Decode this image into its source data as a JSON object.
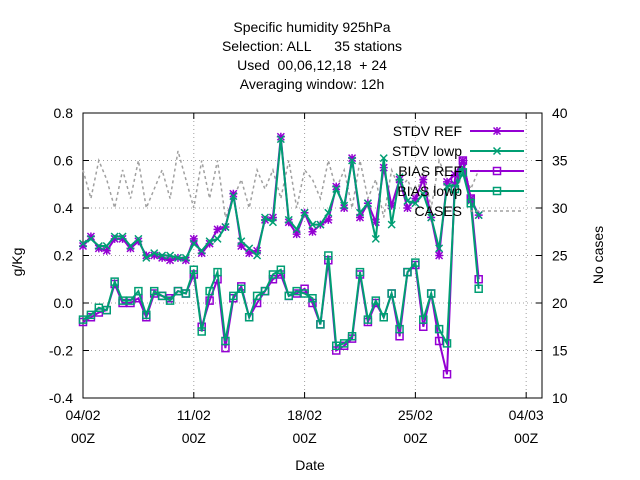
{
  "chart_data": {
    "type": "line",
    "title_lines": [
      "Specific humidity 925hPa",
      "Selection: ALL      35 stations",
      "Used  00,06,12,18  + 24",
      "Averaging window: 12h"
    ],
    "xlabel": "Date",
    "ylabel": "g/Kg",
    "y2label": "No cases",
    "xlim": [
      0,
      29
    ],
    "ylim": [
      -0.4,
      0.8
    ],
    "y2lim": [
      10,
      40
    ],
    "grid": true,
    "legend_position": "top-right",
    "x_ticks": [
      {
        "x": 0,
        "line1": "04/02",
        "line2": "00Z"
      },
      {
        "x": 7,
        "line1": "11/02",
        "line2": "00Z"
      },
      {
        "x": 14,
        "line1": "18/02",
        "line2": "00Z"
      },
      {
        "x": 21,
        "line1": "25/02",
        "line2": "00Z"
      },
      {
        "x": 28,
        "line1": "04/03",
        "line2": "00Z"
      }
    ],
    "y_ticks": [
      -0.4,
      -0.2,
      0,
      0.2,
      0.4,
      0.6,
      0.8
    ],
    "y2_ticks": [
      10,
      15,
      20,
      25,
      30,
      35,
      40
    ],
    "colors": {
      "ref": "#9400d3",
      "lowp": "#009e73",
      "cases": "#a0a0a0"
    },
    "x": [
      0,
      0.5,
      1,
      1.5,
      2,
      2.5,
      3,
      3.5,
      4,
      4.5,
      5,
      5.5,
      6,
      6.5,
      7,
      7.5,
      8,
      8.5,
      9,
      9.5,
      10,
      10.5,
      11,
      11.5,
      12,
      12.5,
      13,
      13.5,
      14,
      14.5,
      15,
      15.5,
      16,
      16.5,
      17,
      17.5,
      18,
      18.5,
      19,
      19.5,
      20,
      20.5,
      21,
      21.5,
      22,
      22.5,
      23,
      23.5,
      24,
      24.5,
      25
    ],
    "series": [
      {
        "name": "STDV REF",
        "axis": "y1",
        "marker": "star",
        "color": "#9400d3",
        "values": [
          0.24,
          0.28,
          0.23,
          0.22,
          0.27,
          0.27,
          0.23,
          0.26,
          0.2,
          0.2,
          0.19,
          0.18,
          0.19,
          0.18,
          0.27,
          0.21,
          0.25,
          0.31,
          0.32,
          0.46,
          0.24,
          0.21,
          0.22,
          0.35,
          0.36,
          0.7,
          0.34,
          0.29,
          0.38,
          0.3,
          0.33,
          0.35,
          0.49,
          0.4,
          0.61,
          0.36,
          0.42,
          0.34,
          0.57,
          0.41,
          0.52,
          0.4,
          0.44,
          0.52,
          0.36,
          0.2,
          0.51,
          0.54,
          0.6,
          0.44,
          0.37
        ]
      },
      {
        "name": "STDV lowp",
        "axis": "y1",
        "marker": "x",
        "color": "#009e73",
        "values": [
          0.25,
          0.27,
          0.24,
          0.24,
          0.28,
          0.28,
          0.24,
          0.27,
          0.19,
          0.21,
          0.2,
          0.2,
          0.19,
          0.19,
          0.25,
          0.22,
          0.26,
          0.27,
          0.32,
          0.45,
          0.26,
          0.23,
          0.2,
          0.36,
          0.34,
          0.69,
          0.35,
          0.31,
          0.38,
          0.33,
          0.33,
          0.38,
          0.48,
          0.41,
          0.6,
          0.38,
          0.42,
          0.27,
          0.61,
          0.33,
          0.53,
          0.43,
          0.42,
          0.46,
          0.36,
          0.23,
          0.49,
          0.5,
          0.57,
          0.43,
          0.37
        ]
      },
      {
        "name": "BIAS REF",
        "axis": "y1",
        "marker": "square",
        "color": "#9400d3",
        "values": [
          -0.08,
          -0.06,
          -0.04,
          -0.03,
          0.08,
          0.0,
          0.0,
          0.02,
          -0.06,
          0.04,
          0.03,
          0.02,
          0.05,
          0.04,
          0.12,
          -0.1,
          0.01,
          0.1,
          -0.19,
          0.02,
          0.07,
          -0.06,
          0.0,
          0.05,
          0.1,
          0.12,
          0.03,
          0.04,
          0.06,
          0.0,
          -0.09,
          0.18,
          -0.2,
          -0.18,
          -0.15,
          0.12,
          -0.08,
          0.0,
          -0.06,
          0.04,
          -0.14,
          0.13,
          0.16,
          -0.1,
          0.04,
          -0.16,
          -0.3,
          0.52,
          0.6,
          0.44,
          0.1
        ]
      },
      {
        "name": "BIAS lowp",
        "axis": "y1",
        "marker": "square",
        "color": "#009e73",
        "values": [
          -0.07,
          -0.05,
          -0.02,
          -0.03,
          0.09,
          0.01,
          0.01,
          0.05,
          -0.05,
          0.05,
          0.03,
          0.01,
          0.05,
          0.04,
          0.14,
          -0.12,
          0.05,
          0.13,
          -0.16,
          0.03,
          0.06,
          -0.06,
          0.03,
          0.05,
          0.12,
          0.14,
          0.03,
          0.05,
          0.04,
          0.02,
          -0.09,
          0.2,
          -0.18,
          -0.17,
          -0.14,
          0.13,
          -0.07,
          0.01,
          -0.06,
          0.04,
          -0.11,
          0.13,
          0.17,
          -0.07,
          0.04,
          -0.11,
          -0.17,
          0.48,
          0.55,
          0.42,
          0.06
        ]
      },
      {
        "name": "CASES",
        "axis": "y2",
        "marker": "none",
        "color": "#a0a0a0",
        "values": [
          34,
          31,
          35,
          33,
          30,
          34,
          31,
          35,
          30,
          32,
          34,
          31,
          36,
          33,
          30,
          35,
          31,
          35,
          29,
          31,
          33,
          30,
          34,
          32,
          34,
          31,
          35,
          30,
          34,
          33,
          31,
          35,
          32,
          34,
          30,
          35,
          31,
          33,
          29,
          34,
          32,
          33,
          31,
          34,
          30,
          35,
          33,
          31,
          34,
          32,
          34
        ]
      }
    ]
  }
}
